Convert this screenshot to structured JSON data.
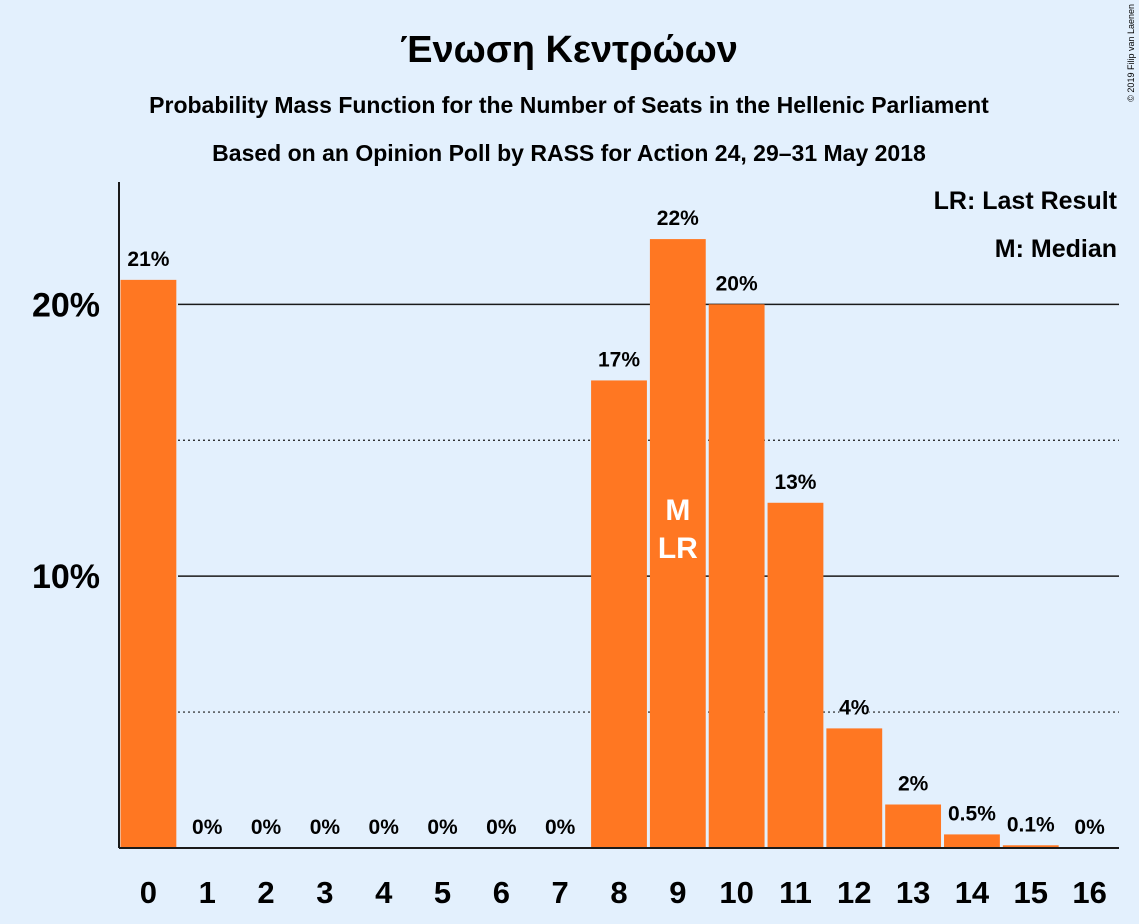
{
  "chart_data": {
    "type": "bar",
    "title": "Ένωση Κεντρώων",
    "subtitle": "Probability Mass Function for the Number of Seats in the Hellenic Parliament",
    "subtitle2": "Based on an Opinion Poll by RASS for Action 24, 29–31 May 2018",
    "copyright": "© 2019 Filip van Laenen",
    "legend": {
      "lr": "LR: Last Result",
      "m": "M: Median",
      "placement": "top-right"
    },
    "categories": [
      "0",
      "1",
      "2",
      "3",
      "4",
      "5",
      "6",
      "7",
      "8",
      "9",
      "10",
      "11",
      "12",
      "13",
      "14",
      "15",
      "16"
    ],
    "values": [
      20.9,
      0,
      0,
      0,
      0,
      0,
      0,
      0,
      17.2,
      22.4,
      20.0,
      12.7,
      4.4,
      1.6,
      0.5,
      0.1,
      0
    ],
    "value_labels": [
      "21%",
      "0%",
      "0%",
      "0%",
      "0%",
      "0%",
      "0%",
      "0%",
      "17%",
      "22%",
      "20%",
      "13%",
      "4%",
      "2%",
      "0.5%",
      "0.1%",
      "0%"
    ],
    "yticks": [
      {
        "value": 10,
        "label": "10%"
      },
      {
        "value": 20,
        "label": "20%"
      }
    ],
    "minor_gridlines": [
      5,
      15
    ],
    "ylim": [
      0,
      24.5
    ],
    "markers": [
      {
        "category": "9",
        "labels": [
          "M",
          "LR"
        ]
      }
    ],
    "bar_color": "#ff7722",
    "background_color": "#e3f0fd",
    "grid": true
  }
}
